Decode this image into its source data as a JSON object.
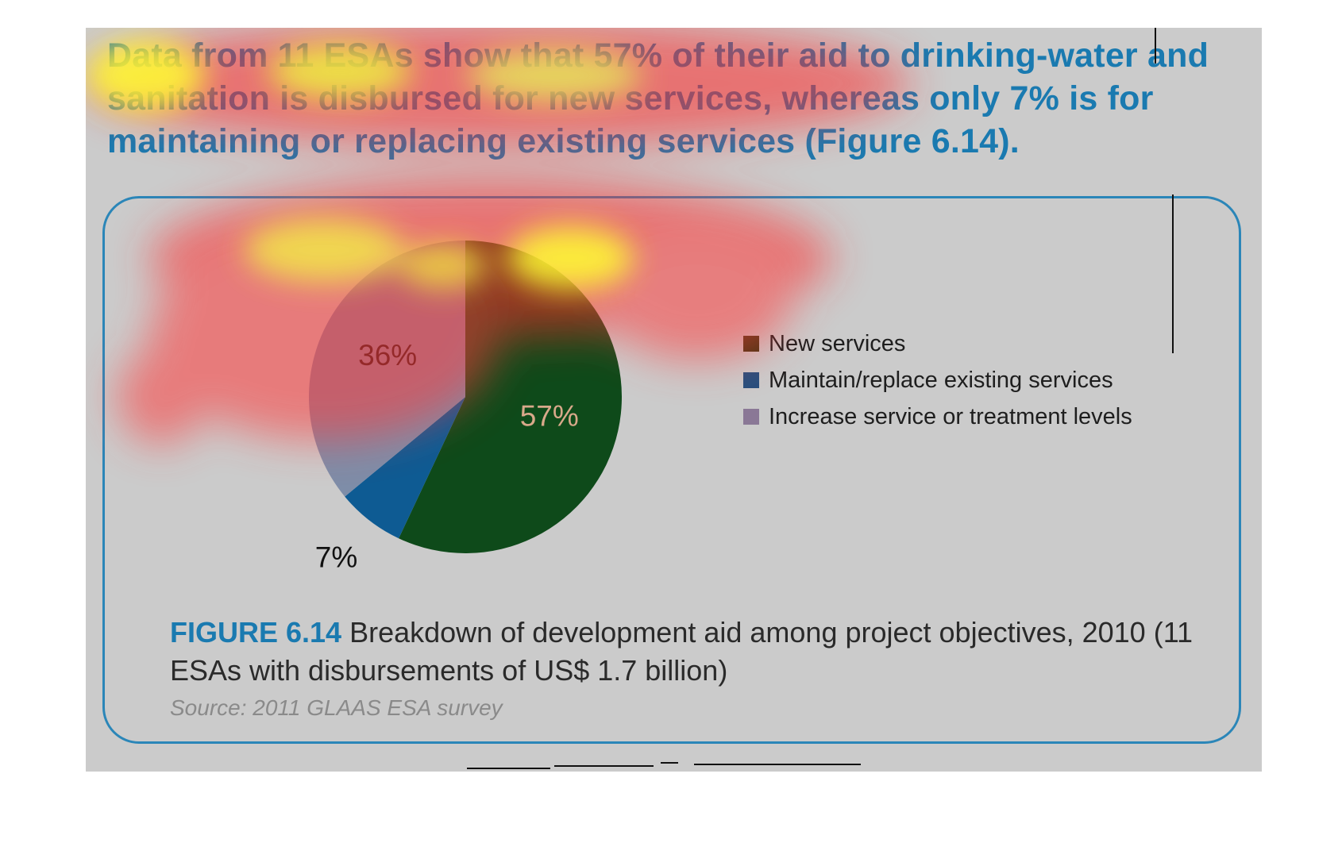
{
  "headline": "Data from 11 ESAs show that 57% of their aid to drinking-water and sanitation is disbursed for new services, whereas only 7% is for maintaining or replacing existing services (Figure 6.14).",
  "figure": {
    "label": "FIGURE 6.14",
    "caption": " Breakdown of development aid among project objectives, 2010 (11 ESAs with disbursements of US$ 1.7 billion)",
    "source": "Source: 2011 GLAAS ESA survey"
  },
  "colors": {
    "accent": "#1a7ab0",
    "slide_bg": "#cbcbcb",
    "heatmap_hot": "#ffff33",
    "heatmap_warm": "#ff2a2a"
  },
  "chart_data": {
    "type": "pie",
    "title": "",
    "slices": [
      {
        "name": "New services",
        "value": 57,
        "label": "57%",
        "color": "#0e4a1a",
        "legend_color": "#3c3410"
      },
      {
        "name": "Maintain/replace existing services",
        "value": 7,
        "label": "7%",
        "color": "#0e5b93",
        "legend_color": "#274f7e"
      },
      {
        "name": "Increase service or treatment levels",
        "value": 36,
        "label": "36%",
        "color": "#7e8da8",
        "legend_color": "#8a7896"
      }
    ],
    "legend_position": "right"
  }
}
